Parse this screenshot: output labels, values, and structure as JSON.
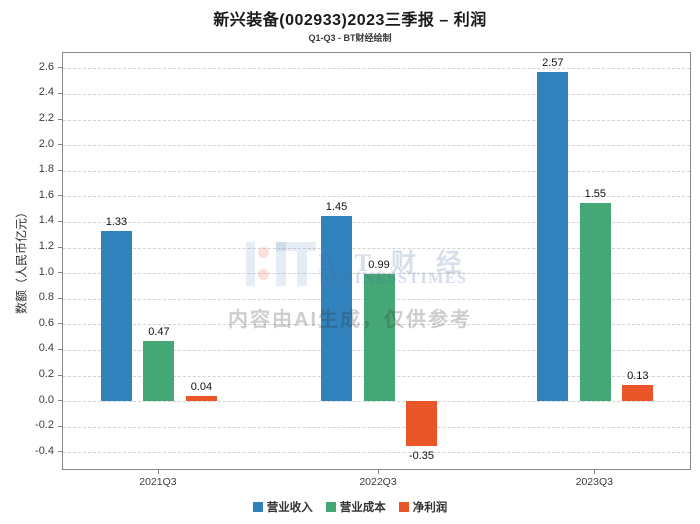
{
  "title": "新兴装备(002933)2023三季报 – 利润",
  "subtitle": "Q1-Q3 - BT财经绘制",
  "watermark": {
    "brand_cn": "B T 财 经",
    "brand_en": "BUSINESSTIMES",
    "disclaimer": "内容由AI生成，仅供参考"
  },
  "chart_data": {
    "type": "bar",
    "title": "新兴装备(002933)2023三季报 – 利润",
    "subtitle": "Q1-Q3 - BT财经绘制",
    "categories": [
      "2021Q3",
      "2022Q3",
      "2023Q3"
    ],
    "series": [
      {
        "name": "营业收入",
        "color": "#3182bd",
        "values": [
          1.33,
          1.45,
          2.57
        ]
      },
      {
        "name": "营业成本",
        "color": "#45a776",
        "values": [
          0.47,
          0.99,
          1.55
        ]
      },
      {
        "name": "净利润",
        "color": "#eb5628",
        "values": [
          0.04,
          -0.35,
          0.13
        ]
      }
    ],
    "xlabel": "",
    "ylabel": "数额（人民币亿元）",
    "ylim": [
      -0.53,
      2.72
    ],
    "yticks": {
      "min": -0.4,
      "max": 2.6,
      "step": 0.2
    },
    "grid": "horizontal-dashed",
    "legend_position": "bottom-center",
    "bar_label_format": "two-decimals"
  }
}
